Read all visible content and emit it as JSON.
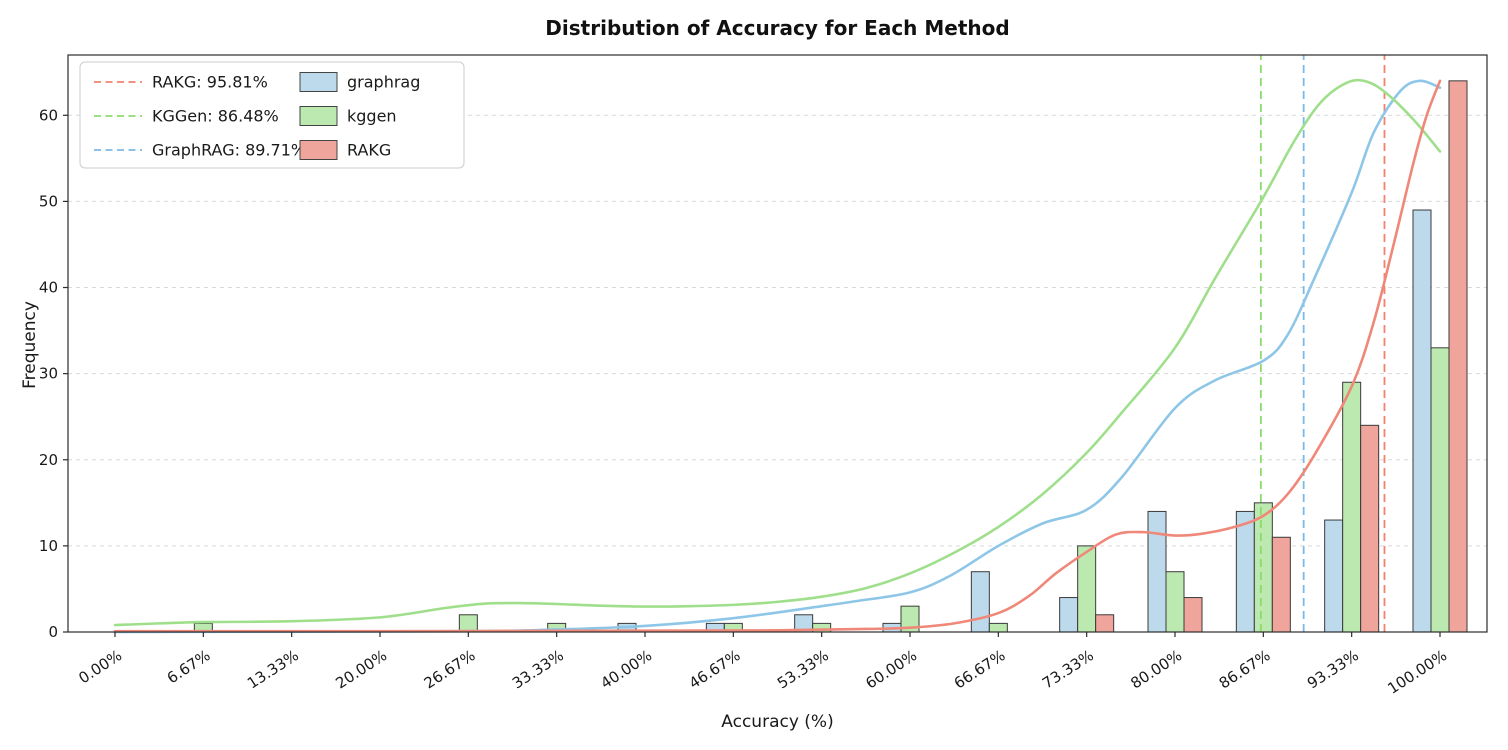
{
  "chart_data": {
    "type": "bar",
    "title": "Distribution of Accuracy for Each Method",
    "xlabel": "Accuracy (%)",
    "ylabel": "Frequency",
    "categories": [
      "0.00%",
      "6.67%",
      "13.33%",
      "20.00%",
      "26.67%",
      "33.33%",
      "40.00%",
      "46.67%",
      "53.33%",
      "60.00%",
      "66.67%",
      "73.33%",
      "80.00%",
      "86.67%",
      "93.33%",
      "100.00%"
    ],
    "bin_percents": [
      0,
      6.67,
      13.33,
      20,
      26.67,
      33.33,
      40,
      46.67,
      53.33,
      60,
      66.67,
      73.33,
      80,
      86.67,
      93.33,
      100
    ],
    "ylim": [
      0,
      67
    ],
    "yticks": [
      0,
      10,
      20,
      30,
      40,
      50,
      60
    ],
    "grid": "horizontal-dashed",
    "legend_position": "upper-left",
    "series": [
      {
        "name": "graphrag",
        "bar_color": "#bcdaec",
        "line_color": "#8ec6e8",
        "values": [
          0,
          0,
          0,
          0,
          0,
          0,
          1,
          1,
          2,
          1,
          7,
          4,
          14,
          14,
          13,
          49
        ],
        "kde": [
          [
            0,
            0
          ],
          [
            26.67,
            0.1
          ],
          [
            33.33,
            0.3
          ],
          [
            40,
            0.7
          ],
          [
            46.67,
            1.6
          ],
          [
            53.33,
            3.0
          ],
          [
            56,
            3.6
          ],
          [
            60,
            4.6
          ],
          [
            63,
            6.5
          ],
          [
            66.67,
            10.0
          ],
          [
            70,
            12.6
          ],
          [
            73.33,
            14.2
          ],
          [
            76,
            18.0
          ],
          [
            80,
            26.0
          ],
          [
            83,
            29.2
          ],
          [
            86.67,
            31.5
          ],
          [
            88.5,
            34.5
          ],
          [
            90.5,
            41.0
          ],
          [
            93.33,
            51.0
          ],
          [
            95,
            58.0
          ],
          [
            97,
            62.8
          ],
          [
            98.5,
            64.0
          ],
          [
            100,
            63.2
          ]
        ]
      },
      {
        "name": "kggen",
        "bar_color": "#bce9af",
        "line_color": "#9fdf8b",
        "values": [
          0,
          1,
          0,
          0,
          2,
          1,
          0,
          1,
          1,
          3,
          1,
          10,
          7,
          15,
          29,
          33
        ],
        "kde": [
          [
            0,
            0.8
          ],
          [
            3.33,
            1.0
          ],
          [
            6.67,
            1.15
          ],
          [
            13.33,
            1.25
          ],
          [
            20,
            1.7
          ],
          [
            25,
            2.8
          ],
          [
            28,
            3.3
          ],
          [
            31,
            3.35
          ],
          [
            33.33,
            3.25
          ],
          [
            36.67,
            3.05
          ],
          [
            40,
            2.95
          ],
          [
            43.33,
            3.0
          ],
          [
            46.67,
            3.15
          ],
          [
            50,
            3.5
          ],
          [
            53.33,
            4.1
          ],
          [
            56.67,
            5.1
          ],
          [
            60,
            6.8
          ],
          [
            63.33,
            9.2
          ],
          [
            66.67,
            12.2
          ],
          [
            70,
            16.0
          ],
          [
            73.33,
            20.8
          ],
          [
            76,
            25.5
          ],
          [
            80,
            33.0
          ],
          [
            83,
            41.0
          ],
          [
            86.67,
            50.5
          ],
          [
            89,
            57.0
          ],
          [
            91,
            61.5
          ],
          [
            93,
            63.8
          ],
          [
            94.5,
            63.9
          ],
          [
            96,
            62.5
          ],
          [
            98,
            59.5
          ],
          [
            100,
            55.8
          ]
        ]
      },
      {
        "name": "RAKG",
        "bar_color": "#f0a59c",
        "line_color": "#ef8878",
        "values": [
          0,
          0,
          0,
          0,
          0,
          0,
          0,
          0,
          0,
          0,
          0,
          2,
          4,
          11,
          24,
          64
        ],
        "kde": [
          [
            0,
            0.1
          ],
          [
            20,
            0.1
          ],
          [
            40,
            0.15
          ],
          [
            50,
            0.2
          ],
          [
            56.67,
            0.35
          ],
          [
            60,
            0.5
          ],
          [
            63.33,
            1.0
          ],
          [
            66.67,
            2.2
          ],
          [
            69,
            4.2
          ],
          [
            71,
            6.8
          ],
          [
            73.33,
            9.3
          ],
          [
            75.5,
            11.3
          ],
          [
            77.5,
            11.6
          ],
          [
            80,
            11.2
          ],
          [
            82,
            11.4
          ],
          [
            84.5,
            12.2
          ],
          [
            86.67,
            13.5
          ],
          [
            88.5,
            16.0
          ],
          [
            90.5,
            20.5
          ],
          [
            93.33,
            28.5
          ],
          [
            95,
            36.0
          ],
          [
            96.5,
            45.0
          ],
          [
            98,
            54.5
          ],
          [
            99,
            60.0
          ],
          [
            100,
            64.0
          ]
        ]
      }
    ],
    "mean_lines": [
      {
        "label": "RAKG: 95.81%",
        "value": 95.81,
        "color": "#f3826d"
      },
      {
        "label": "KGGen: 86.48%",
        "value": 86.48,
        "color": "#8cdb6c"
      },
      {
        "label": "GraphRAG: 89.71%",
        "value": 89.71,
        "color": "#7ab9e8"
      }
    ]
  }
}
